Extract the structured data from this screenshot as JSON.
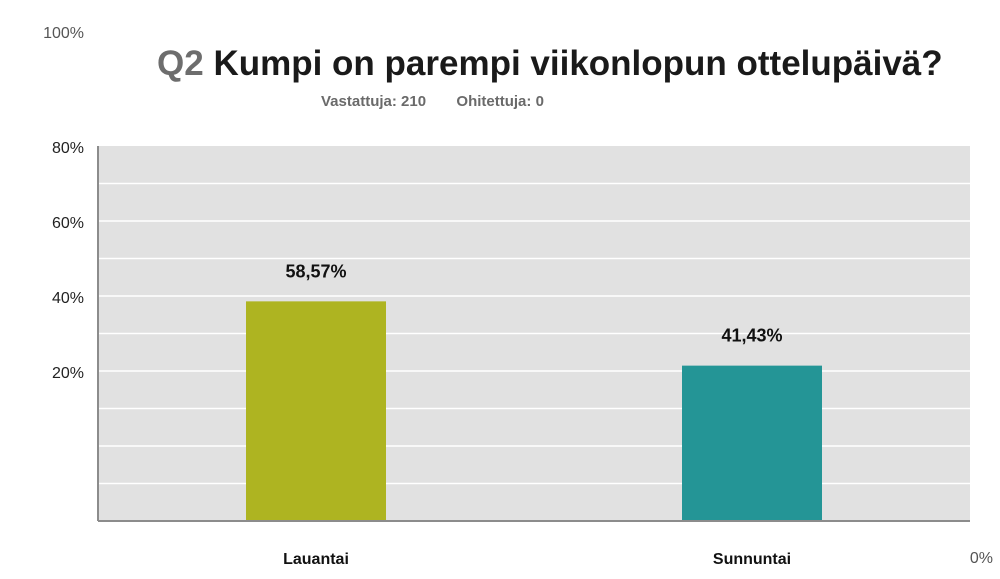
{
  "header": {
    "question_number": "Q2",
    "question_text": "Kumpi on parempi viikonlopun ottelupäivä?",
    "answered_label": "Vastattuja:",
    "answered_count": "210",
    "skipped_label": "Ohitettuja:",
    "skipped_count": "0"
  },
  "chart_data": {
    "type": "bar",
    "categories": [
      "Lauantai",
      "Sunnuntai"
    ],
    "values": [
      58.57,
      41.43
    ],
    "value_labels": [
      "58,57%",
      "41,43%"
    ],
    "ylim": [
      0,
      100
    ],
    "y_ticks": [
      {
        "value": 100,
        "label": "100%"
      },
      {
        "value": 80,
        "label": "80%"
      },
      {
        "value": 60,
        "label": "60%"
      },
      {
        "value": 40,
        "label": "40%"
      },
      {
        "value": 20,
        "label": "20%"
      },
      {
        "value": 0,
        "label": "0%"
      }
    ],
    "grid": true,
    "colors": {
      "bars": [
        "#aeb421",
        "#249596"
      ],
      "plot_background": "#e1e1e1",
      "grid": "#ffffff",
      "axis": "#8c8c8c"
    }
  }
}
